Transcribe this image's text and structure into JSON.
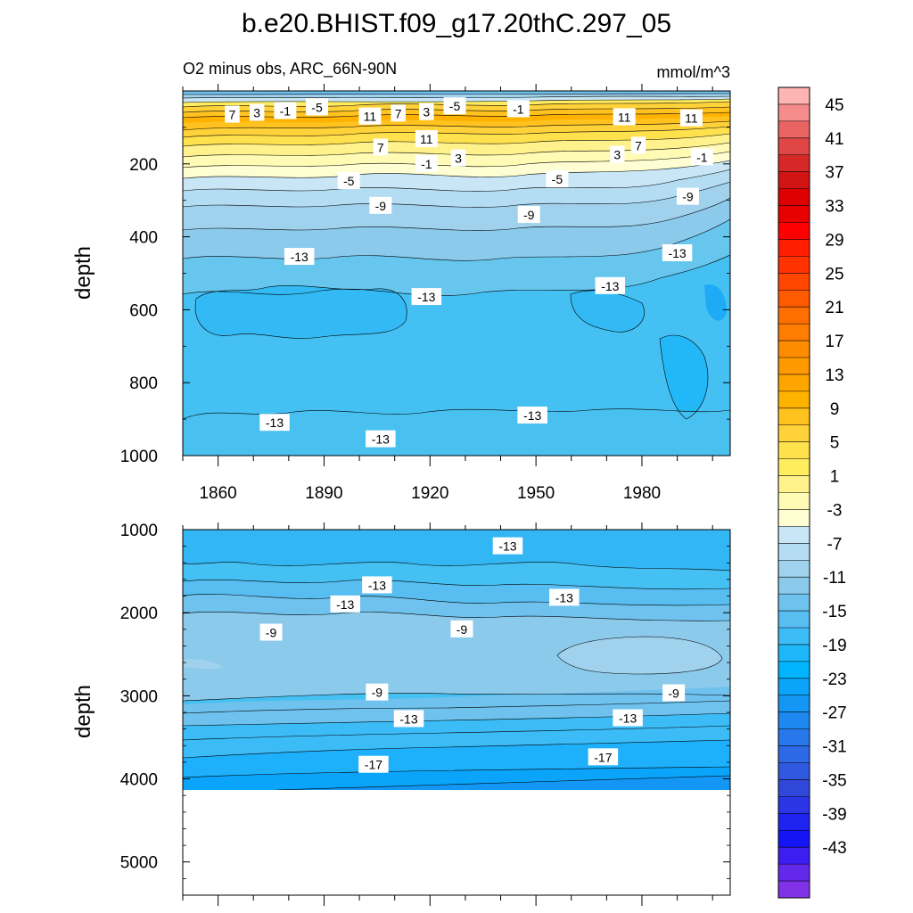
{
  "chart_data": [
    {
      "type": "contour",
      "panel": "upper",
      "title": "b.e20.BHIST.f09_g17.20thC.297_05",
      "subtitle_left": "O2 minus obs, ARC_66N-90N",
      "subtitle_right": "mmol/m^3",
      "ylabel": "depth",
      "xlim": [
        1850,
        2005
      ],
      "ylim": [
        1000,
        0
      ],
      "x_ticks": [
        1860,
        1890,
        1920,
        1950,
        1980
      ],
      "y_ticks": [
        200,
        400,
        600,
        800,
        1000
      ],
      "contour_labels": [
        {
          "x": 1864,
          "y": 65,
          "v": "7"
        },
        {
          "x": 1871,
          "y": 60,
          "v": "3"
        },
        {
          "x": 1879,
          "y": 55,
          "v": "-1"
        },
        {
          "x": 1888,
          "y": 45,
          "v": "-5"
        },
        {
          "x": 1903,
          "y": 70,
          "v": "11"
        },
        {
          "x": 1911,
          "y": 62,
          "v": "7"
        },
        {
          "x": 1919,
          "y": 58,
          "v": "3"
        },
        {
          "x": 1927,
          "y": 42,
          "v": "-5"
        },
        {
          "x": 1945,
          "y": 50,
          "v": "-1"
        },
        {
          "x": 1975,
          "y": 72,
          "v": "11"
        },
        {
          "x": 1994,
          "y": 75,
          "v": "11"
        },
        {
          "x": 1919,
          "y": 132,
          "v": "11"
        },
        {
          "x": 1906,
          "y": 155,
          "v": "7"
        },
        {
          "x": 1979,
          "y": 150,
          "v": "7"
        },
        {
          "x": 1973,
          "y": 175,
          "v": "3"
        },
        {
          "x": 1928,
          "y": 185,
          "v": "3"
        },
        {
          "x": 1919,
          "y": 200,
          "v": "-1"
        },
        {
          "x": 1997,
          "y": 182,
          "v": "-1"
        },
        {
          "x": 1897,
          "y": 247,
          "v": "-5"
        },
        {
          "x": 1956,
          "y": 242,
          "v": "-5"
        },
        {
          "x": 1993,
          "y": 290,
          "v": "-9"
        },
        {
          "x": 1906,
          "y": 315,
          "v": "-9"
        },
        {
          "x": 1948,
          "y": 340,
          "v": "-9"
        },
        {
          "x": 1883,
          "y": 455,
          "v": "-13"
        },
        {
          "x": 1990,
          "y": 445,
          "v": "-13"
        },
        {
          "x": 1971,
          "y": 535,
          "v": "-13"
        },
        {
          "x": 1919,
          "y": 565,
          "v": "-13"
        },
        {
          "x": 1876,
          "y": 910,
          "v": "-13"
        },
        {
          "x": 1949,
          "y": 890,
          "v": "-13"
        },
        {
          "x": 1906,
          "y": 955,
          "v": "-13"
        }
      ]
    },
    {
      "type": "contour",
      "panel": "lower",
      "ylabel": "depth",
      "xlim": [
        1850,
        2005
      ],
      "ylim": [
        5400,
        1000
      ],
      "y_ticks": [
        1000,
        2000,
        3000,
        4000,
        5000
      ],
      "data_bottom_depth": 4120,
      "contour_labels": [
        {
          "x": 1942,
          "y": 1200,
          "v": "-13"
        },
        {
          "x": 1905,
          "y": 1670,
          "v": "-13"
        },
        {
          "x": 1896,
          "y": 1900,
          "v": "-13"
        },
        {
          "x": 1958,
          "y": 1820,
          "v": "-13"
        },
        {
          "x": 1875,
          "y": 2240,
          "v": "-9"
        },
        {
          "x": 1929,
          "y": 2200,
          "v": "-9"
        },
        {
          "x": 1905,
          "y": 2960,
          "v": "-9"
        },
        {
          "x": 1989,
          "y": 2970,
          "v": "-9"
        },
        {
          "x": 1914,
          "y": 3280,
          "v": "-13"
        },
        {
          "x": 1976,
          "y": 3270,
          "v": "-13"
        },
        {
          "x": 1904,
          "y": 3830,
          "v": "-17"
        },
        {
          "x": 1969,
          "y": 3740,
          "v": "-17"
        }
      ]
    }
  ],
  "colorbar": {
    "levels_from": -45,
    "levels_to": 47,
    "step": 2,
    "labels": [
      "45",
      "41",
      "37",
      "33",
      "29",
      "25",
      "21",
      "17",
      "13",
      "9",
      "5",
      "1",
      "-3",
      "-7",
      "-11",
      "-15",
      "-19",
      "-23",
      "-27",
      "-31",
      "-35",
      "-39",
      "-43"
    ],
    "colors_top_to_bottom": [
      "#ffb4b4",
      "#f58c8c",
      "#eb6464",
      "#e14646",
      "#d72828",
      "#d21414",
      "#dc0000",
      "#e60000",
      "#ff0000",
      "#ff1e00",
      "#ff3200",
      "#ff4600",
      "#ff5a00",
      "#ff6e00",
      "#ff7d00",
      "#ff8c00",
      "#ff9900",
      "#ffa500",
      "#ffb300",
      "#ffc21f",
      "#ffd23a",
      "#ffe14d",
      "#ffec5f",
      "#fff28c",
      "#fffab4",
      "#fffdd2",
      "#c8e6f5",
      "#b4dcf2",
      "#a0d2ee",
      "#8ccaec",
      "#6fc2ee",
      "#58bef2",
      "#3cbcf6",
      "#1eb8fa",
      "#00b4ff",
      "#0aa5fa",
      "#1496f5",
      "#1e87f0",
      "#2878eb",
      "#2d69e6",
      "#3059e0",
      "#3048da",
      "#2a35e6",
      "#1e23f0",
      "#1414f5",
      "#3c1ef0",
      "#6428eb",
      "#8232e6"
    ]
  }
}
